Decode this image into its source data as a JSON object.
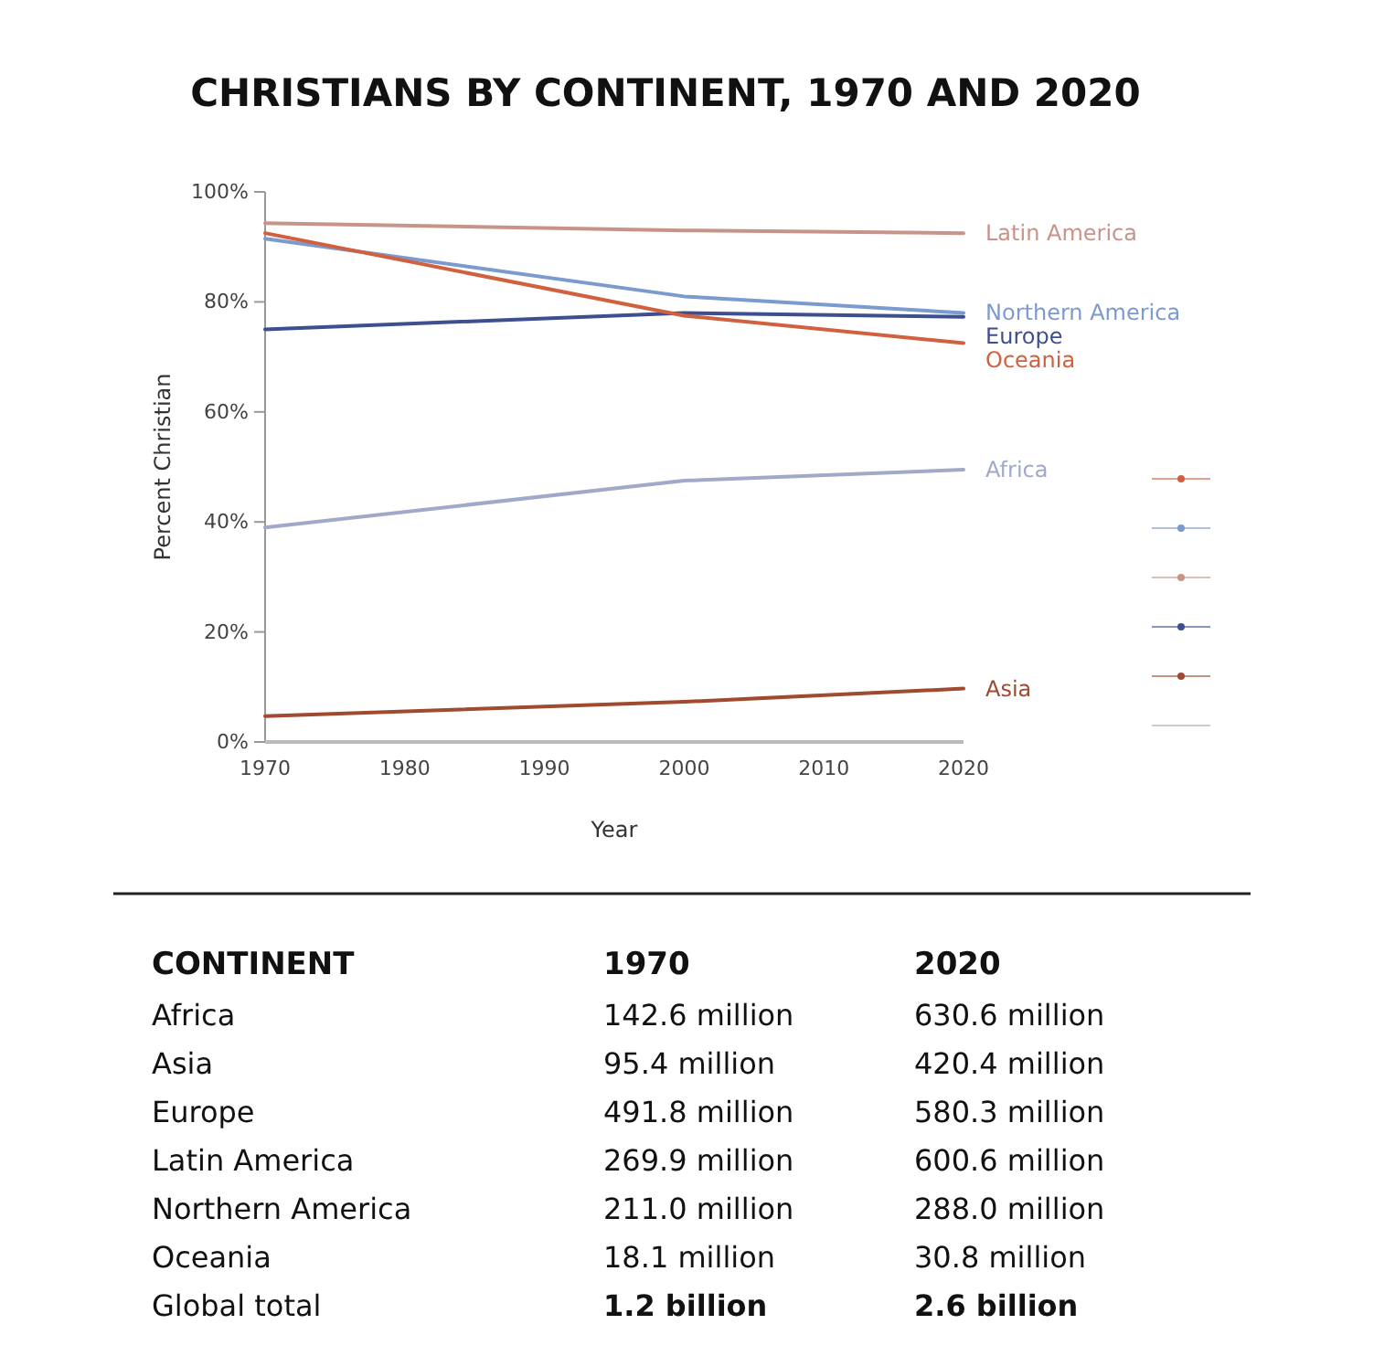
{
  "chart_data": [
    {
      "type": "line",
      "title": "CHRISTIANS BY CONTINENT, 1970 AND 2020",
      "xlabel": "Year",
      "ylabel": "Percent Christian",
      "x": [
        1970,
        2000,
        2020
      ],
      "series": [
        {
          "name": "Latin America",
          "color": "#c8948a",
          "values": [
            94.3,
            93,
            92.5
          ]
        },
        {
          "name": "Northern America",
          "color": "#7a9ad0",
          "values": [
            91.5,
            81,
            78
          ]
        },
        {
          "name": "Europe",
          "color": "#3d4f8f",
          "values": [
            75,
            78,
            77.3
          ]
        },
        {
          "name": "Oceania",
          "color": "#d0603e",
          "values": [
            92.5,
            77.5,
            72.5
          ]
        },
        {
          "name": "Africa",
          "color": "#a0aac8",
          "values": [
            39,
            47.5,
            49.5
          ]
        },
        {
          "name": "Asia",
          "color": "#a04a30",
          "values": [
            4.7,
            7.3,
            9.7
          ]
        }
      ],
      "xlim": [
        1970,
        2020
      ],
      "xticks": [
        1970,
        1980,
        1990,
        2000,
        2010,
        2020
      ],
      "ylim": [
        0,
        100
      ],
      "yticks": [
        {
          "value": 0,
          "label": "0%"
        },
        {
          "value": 20,
          "label": "20%"
        },
        {
          "value": 40,
          "label": "40%"
        },
        {
          "value": 60,
          "label": "60%"
        },
        {
          "value": 80,
          "label": "80%"
        },
        {
          "value": 100,
          "label": "100%"
        }
      ],
      "grid": false,
      "marker": "none",
      "line_style": "solid"
    },
    {
      "type": "other",
      "categories": [
        "CONTINENT",
        "1970",
        "2020"
      ],
      "annotations": [
        "Africa",
        "142.6 million",
        "630.6 million",
        "Asia",
        "95.4 million",
        "420.4 million",
        "Europe",
        "491.8 million",
        "580.3 million",
        "Latin America",
        "269.9 million",
        "600.6 million",
        "Northern America",
        "211.0 million",
        "288.0 million",
        "Oceania",
        "18.1 million",
        "30.8 million",
        "Global total",
        "1.2 billion",
        "2.6 billion"
      ]
    }
  ]
}
